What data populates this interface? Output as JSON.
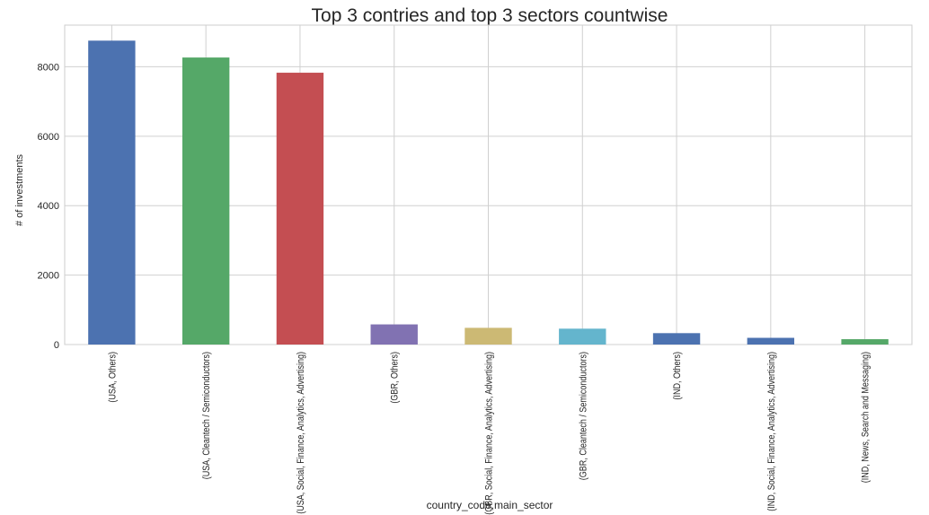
{
  "chart_data": {
    "type": "bar",
    "title": "Top 3 contries and top 3 sectors countwise",
    "xlabel": "country_code,main_sector",
    "ylabel": "# of investments",
    "categories": [
      "(USA, Others)",
      "(USA, Cleantech / Semiconductors)",
      "(USA, Social, Finance, Analytics, Advertising)",
      "(GBR, Others)",
      "(GBR, Social, Finance, Analytics, Advertising)",
      "(GBR, Cleantech / Semiconductors)",
      "(IND, Others)",
      "(IND, Social, Finance, Analytics, Advertising)",
      "(IND, News, Search and Messaging)"
    ],
    "values": [
      8753,
      8267,
      7829,
      580,
      481,
      457,
      328,
      193,
      154
    ],
    "bar_colors": [
      "#4c72b0",
      "#55a868",
      "#c44e52",
      "#8172b2",
      "#ccb974",
      "#64b5cd",
      "#4c72b0",
      "#4c72b0",
      "#55a868"
    ],
    "ylim": [
      0,
      9200
    ],
    "yticks": [
      0,
      2000,
      4000,
      6000,
      8000
    ],
    "grid": true,
    "legend": "none"
  }
}
